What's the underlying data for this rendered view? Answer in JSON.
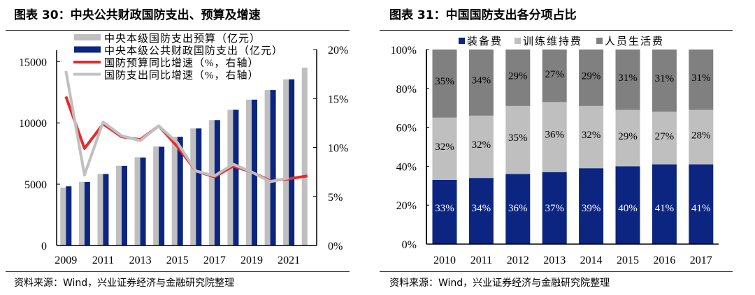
{
  "left": {
    "title": "图表 30：中央公共财政国防支出、预算及增速",
    "source": "资料来源：Wind，兴业证券经济与金融研究院整理"
  },
  "right": {
    "title": "图表 31：中国国防支出各分项占比",
    "source": "资料来源：Wind，兴业证券经济与金融研究院整理"
  },
  "colors": {
    "blue": "#0b2580",
    "lightgray": "#bfbfbf",
    "darkgray": "#808080",
    "red": "#e8292b",
    "linegray": "#c0c0c0"
  },
  "chart_data": [
    {
      "type": "bar+line",
      "title": "中央公共财政国防支出、预算及增速",
      "categories": [
        "2009",
        "2010",
        "2011",
        "2012",
        "2013",
        "2014",
        "2015",
        "2016",
        "2017",
        "2018",
        "2019",
        "2020",
        "2021",
        "2022"
      ],
      "x_tick_labels": [
        "2009",
        "2011",
        "2013",
        "2015",
        "2017",
        "2019",
        "2021"
      ],
      "ylim": [
        0,
        16000
      ],
      "y_ticks": [
        0,
        5000,
        10000,
        15000
      ],
      "y_tick_labels": [
        "0",
        "5000",
        "10000",
        "15000"
      ],
      "y2lim": [
        0,
        20
      ],
      "y2_ticks": [
        0,
        5,
        10,
        15,
        20
      ],
      "y2_tick_labels": [
        "0%",
        "5%",
        "10%",
        "15%",
        "20%"
      ],
      "legend_position": "top-left",
      "series": [
        {
          "name": "中央本级国防支出预算（亿元）",
          "kind": "bar",
          "axis": "left",
          "values": [
            4729,
            5191,
            5836,
            6503,
            7202,
            8082,
            8869,
            9544,
            10226,
            11070,
            11899,
            12680,
            13553,
            14505
          ]
        },
        {
          "name": "中央本级公共财政国防支出（亿元）",
          "kind": "bar",
          "axis": "left",
          "values": [
            4825,
            5176,
            5830,
            6492,
            7178,
            8055,
            8868,
            9546,
            10226,
            11070,
            11896,
            12680,
            13553,
            null
          ]
        },
        {
          "name": "国防预算同比增速（%，右轴）",
          "kind": "line",
          "axis": "right",
          "values": [
            15.2,
            9.9,
            12.4,
            11.1,
            10.8,
            12.2,
            10.1,
            7.6,
            7.0,
            8.1,
            7.5,
            6.6,
            6.8,
            7.1
          ]
        },
        {
          "name": "国防支出同比增速（%，右轴）",
          "kind": "line",
          "axis": "right",
          "values": [
            17.8,
            7.2,
            12.6,
            11.2,
            10.7,
            12.2,
            10.5,
            7.6,
            7.1,
            8.3,
            7.5,
            6.5,
            6.9,
            null
          ]
        }
      ]
    },
    {
      "type": "bar",
      "stacked": true,
      "title": "中国国防支出各分项占比",
      "categories": [
        "2010",
        "2011",
        "2012",
        "2013",
        "2014",
        "2015",
        "2016",
        "2017"
      ],
      "ylim": [
        0,
        100
      ],
      "y_tick_labels": [
        "0%",
        "20%",
        "40%",
        "60%",
        "80%",
        "100%"
      ],
      "legend_position": "top",
      "series": [
        {
          "name": "装备费",
          "values": [
            33,
            34,
            36,
            37,
            39,
            40,
            41,
            41
          ],
          "labels": [
            "33%",
            "34%",
            "36%",
            "37%",
            "39%",
            "40%",
            "41%",
            "41%"
          ]
        },
        {
          "name": "训练维持费",
          "values": [
            32,
            32,
            35,
            36,
            32,
            29,
            27,
            28
          ],
          "labels": [
            "32%",
            "32%",
            "35%",
            "36%",
            "32%",
            "29%",
            "27%",
            "28%"
          ]
        },
        {
          "name": "人员生活费",
          "values": [
            35,
            34,
            29,
            27,
            29,
            31,
            31,
            31
          ],
          "labels": [
            "35%",
            "34%",
            "29%",
            "27%",
            "29%",
            "31%",
            "31%",
            "31%"
          ]
        }
      ]
    }
  ]
}
